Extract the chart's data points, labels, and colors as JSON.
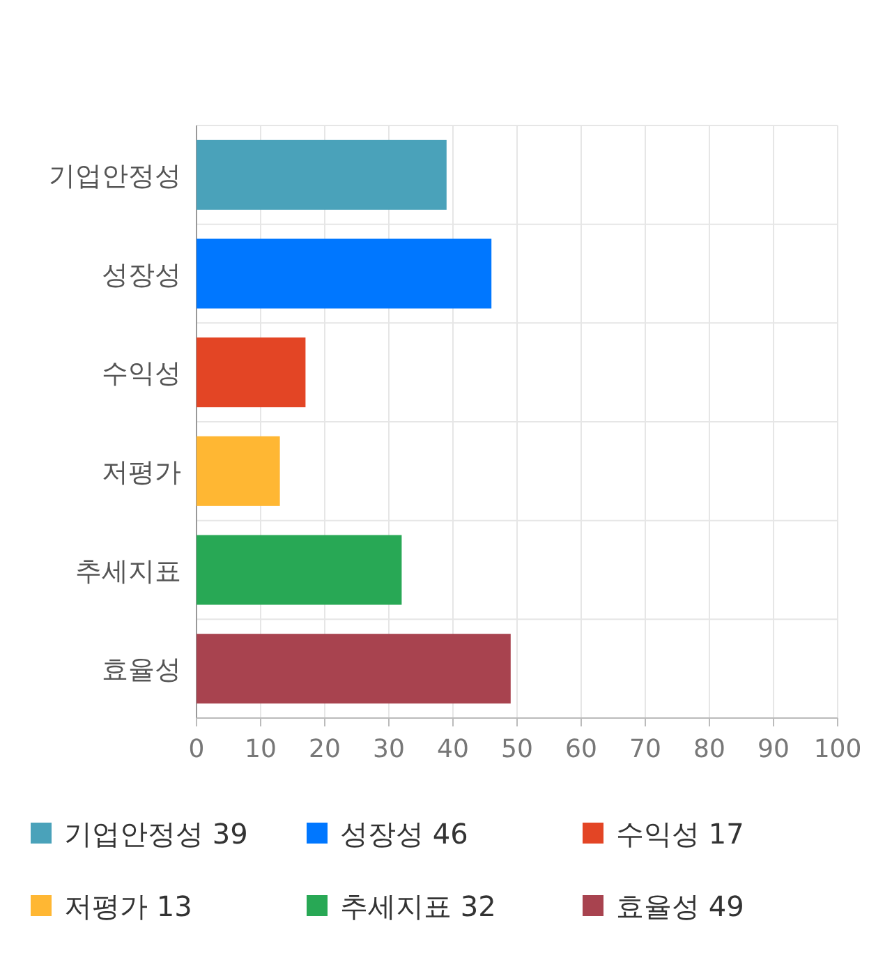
{
  "chart_data": {
    "type": "bar",
    "orientation": "horizontal",
    "stacked": true,
    "categories": [
      "기업안정성",
      "성장성",
      "수익성",
      "저평가",
      "추세지표",
      "효율성"
    ],
    "series": [
      {
        "name": "기업안정성 39",
        "color": "#4aa2ba",
        "values": [
          39,
          null,
          null,
          null,
          null,
          null
        ]
      },
      {
        "name": "성장성 46",
        "color": "#0077ff",
        "values": [
          null,
          46,
          null,
          null,
          null,
          null
        ]
      },
      {
        "name": "수익성 17",
        "color": "#e34525",
        "values": [
          null,
          null,
          17,
          null,
          null,
          null
        ]
      },
      {
        "name": "저평가 13",
        "color": "#ffb733",
        "values": [
          null,
          null,
          null,
          13,
          null,
          null
        ]
      },
      {
        "name": "추세지표 32",
        "color": "#28a855",
        "values": [
          null,
          null,
          null,
          null,
          32,
          null
        ]
      },
      {
        "name": "효율성 49",
        "color": "#a8434f",
        "values": [
          null,
          null,
          null,
          null,
          null,
          49
        ]
      }
    ],
    "xlim": [
      0,
      100
    ],
    "xticks": [
      0,
      10,
      20,
      30,
      40,
      50,
      60,
      70,
      80,
      90,
      100
    ],
    "grid": true,
    "legend": "bottom"
  }
}
